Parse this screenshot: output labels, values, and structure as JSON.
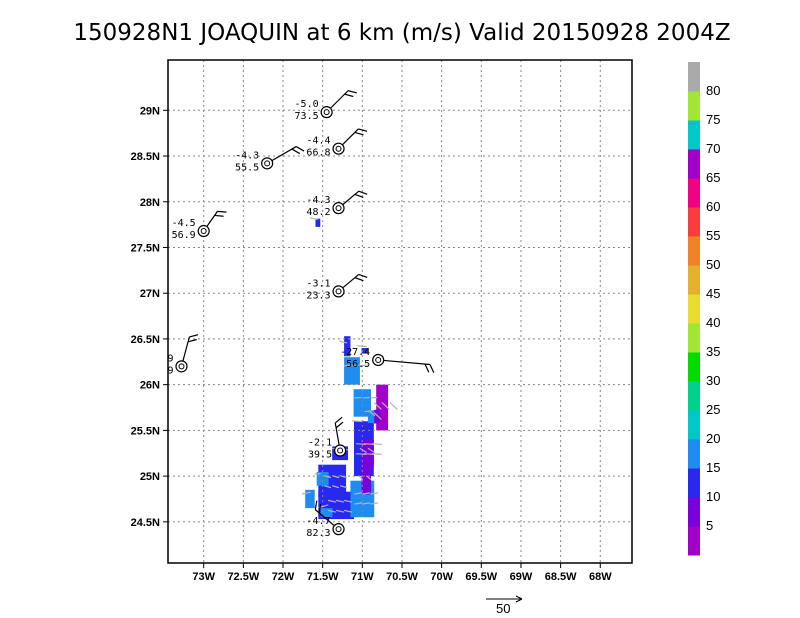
{
  "chart_data": {
    "type": "heatmap",
    "title": "150928N1 JOAQUIN at 6 km (m/s) Valid 20150928 2004Z",
    "x_ticks": [
      "73W",
      "72.5W",
      "72W",
      "71.5W",
      "71W",
      "70.5W",
      "70W",
      "69.5W",
      "69W",
      "68.5W",
      "68W"
    ],
    "y_ticks": [
      "29N",
      "28.5N",
      "28N",
      "27.5N",
      "27N",
      "26.5N",
      "26N",
      "25.5N",
      "25N",
      "24.5N"
    ],
    "xlim": [
      -73.45,
      -67.6
    ],
    "ylim": [
      24.05,
      29.55
    ],
    "grid": true,
    "colorbar": {
      "labels": [
        "5",
        "10",
        "15",
        "20",
        "25",
        "30",
        "35",
        "40",
        "45",
        "50",
        "55",
        "60",
        "65",
        "70",
        "75",
        "80"
      ],
      "colors": [
        "#a000c8",
        "#7800dc",
        "#2828f0",
        "#1e8cf0",
        "#00c8c8",
        "#00d28c",
        "#00dc00",
        "#a0e632",
        "#e6dc32",
        "#e6af2d",
        "#f08228",
        "#fa3c3c",
        "#f00082",
        "#a000c8",
        "#00c8c8",
        "#a0e632",
        "#aaaaaa"
      ]
    },
    "cells": [
      {
        "lon": -71.33,
        "lat": 24.68,
        "w": 0.45,
        "h": 0.3,
        "v": 12
      },
      {
        "lon": -71.38,
        "lat": 24.95,
        "w": 0.35,
        "h": 0.35,
        "v": 11
      },
      {
        "lon": -71.0,
        "lat": 24.75,
        "w": 0.3,
        "h": 0.4,
        "v": 17
      },
      {
        "lon": -70.98,
        "lat": 25.3,
        "w": 0.25,
        "h": 0.6,
        "v": 14
      },
      {
        "lon": -71.0,
        "lat": 25.8,
        "w": 0.22,
        "h": 0.3,
        "v": 16
      },
      {
        "lon": -71.13,
        "lat": 26.15,
        "w": 0.2,
        "h": 0.3,
        "v": 17
      },
      {
        "lon": -71.19,
        "lat": 26.42,
        "w": 0.08,
        "h": 0.22,
        "v": 12
      },
      {
        "lon": -71.03,
        "lat": 25.55,
        "w": 0.1,
        "h": 0.1,
        "v": 14
      },
      {
        "lon": -70.87,
        "lat": 25.65,
        "w": 0.12,
        "h": 0.14,
        "v": 17
      },
      {
        "lon": -70.75,
        "lat": 25.75,
        "w": 0.15,
        "h": 0.5,
        "v": 4
      },
      {
        "lon": -70.81,
        "lat": 25.65,
        "w": 0.08,
        "h": 0.15,
        "v": 6
      },
      {
        "lon": -70.93,
        "lat": 25.25,
        "w": 0.15,
        "h": 0.3,
        "v": 7
      },
      {
        "lon": -70.95,
        "lat": 24.95,
        "w": 0.12,
        "h": 0.3,
        "v": 5
      },
      {
        "lon": -71.28,
        "lat": 25.25,
        "w": 0.2,
        "h": 0.15,
        "v": 12
      },
      {
        "lon": -71.66,
        "lat": 24.75,
        "w": 0.12,
        "h": 0.2,
        "v": 18
      },
      {
        "lon": -71.45,
        "lat": 24.6,
        "w": 0.15,
        "h": 0.1,
        "v": 19
      },
      {
        "lon": -71.5,
        "lat": 24.97,
        "w": 0.15,
        "h": 0.15,
        "v": 15
      },
      {
        "lon": -71.56,
        "lat": 27.77,
        "w": 0.06,
        "h": 0.09,
        "v": 12
      },
      {
        "lon": -70.97,
        "lat": 26.37,
        "w": 0.08,
        "h": 0.06,
        "v": 14
      }
    ],
    "track": [
      {
        "lon": -71.45,
        "lat": 28.98,
        "vmax": "-5.0",
        "dist": "73.5",
        "barb": [
          45,
          0.38
        ]
      },
      {
        "lon": -71.3,
        "lat": 28.58,
        "vmax": "-4.4",
        "dist": "66.8",
        "barb": [
          45,
          0.35
        ]
      },
      {
        "lon": -72.2,
        "lat": 28.42,
        "vmax": "-4.3",
        "dist": "55.5",
        "barb": [
          30,
          0.42
        ]
      },
      {
        "lon": -71.3,
        "lat": 27.93,
        "vmax": "-4.3",
        "dist": "48.2",
        "barb": [
          40,
          0.33
        ]
      },
      {
        "lon": -73.0,
        "lat": 27.68,
        "vmax": "-4.5",
        "dist": "56.9",
        "barb": [
          55,
          0.3
        ]
      },
      {
        "lon": -71.3,
        "lat": 27.02,
        "vmax": "-3.1",
        "dist": "23.3",
        "barb": [
          40,
          0.33
        ]
      },
      {
        "lon": -73.28,
        "lat": 26.2,
        "vmax": "9",
        "dist": "9",
        "barb": [
          75,
          0.38
        ]
      },
      {
        "lon": -70.8,
        "lat": 26.27,
        "vmax": "-27.4",
        "dist": "56.5",
        "barb": [
          -5,
          0.65
        ]
      },
      {
        "lon": -71.28,
        "lat": 25.28,
        "vmax": "-2.1",
        "dist": "39.5",
        "barb": [
          100,
          0.35
        ]
      },
      {
        "lon": -71.3,
        "lat": 24.42,
        "vmax": "-4.7",
        "dist": "82.3",
        "barb": [
          140,
          0.38
        ]
      }
    ],
    "reference_vector": {
      "label": "50"
    }
  }
}
